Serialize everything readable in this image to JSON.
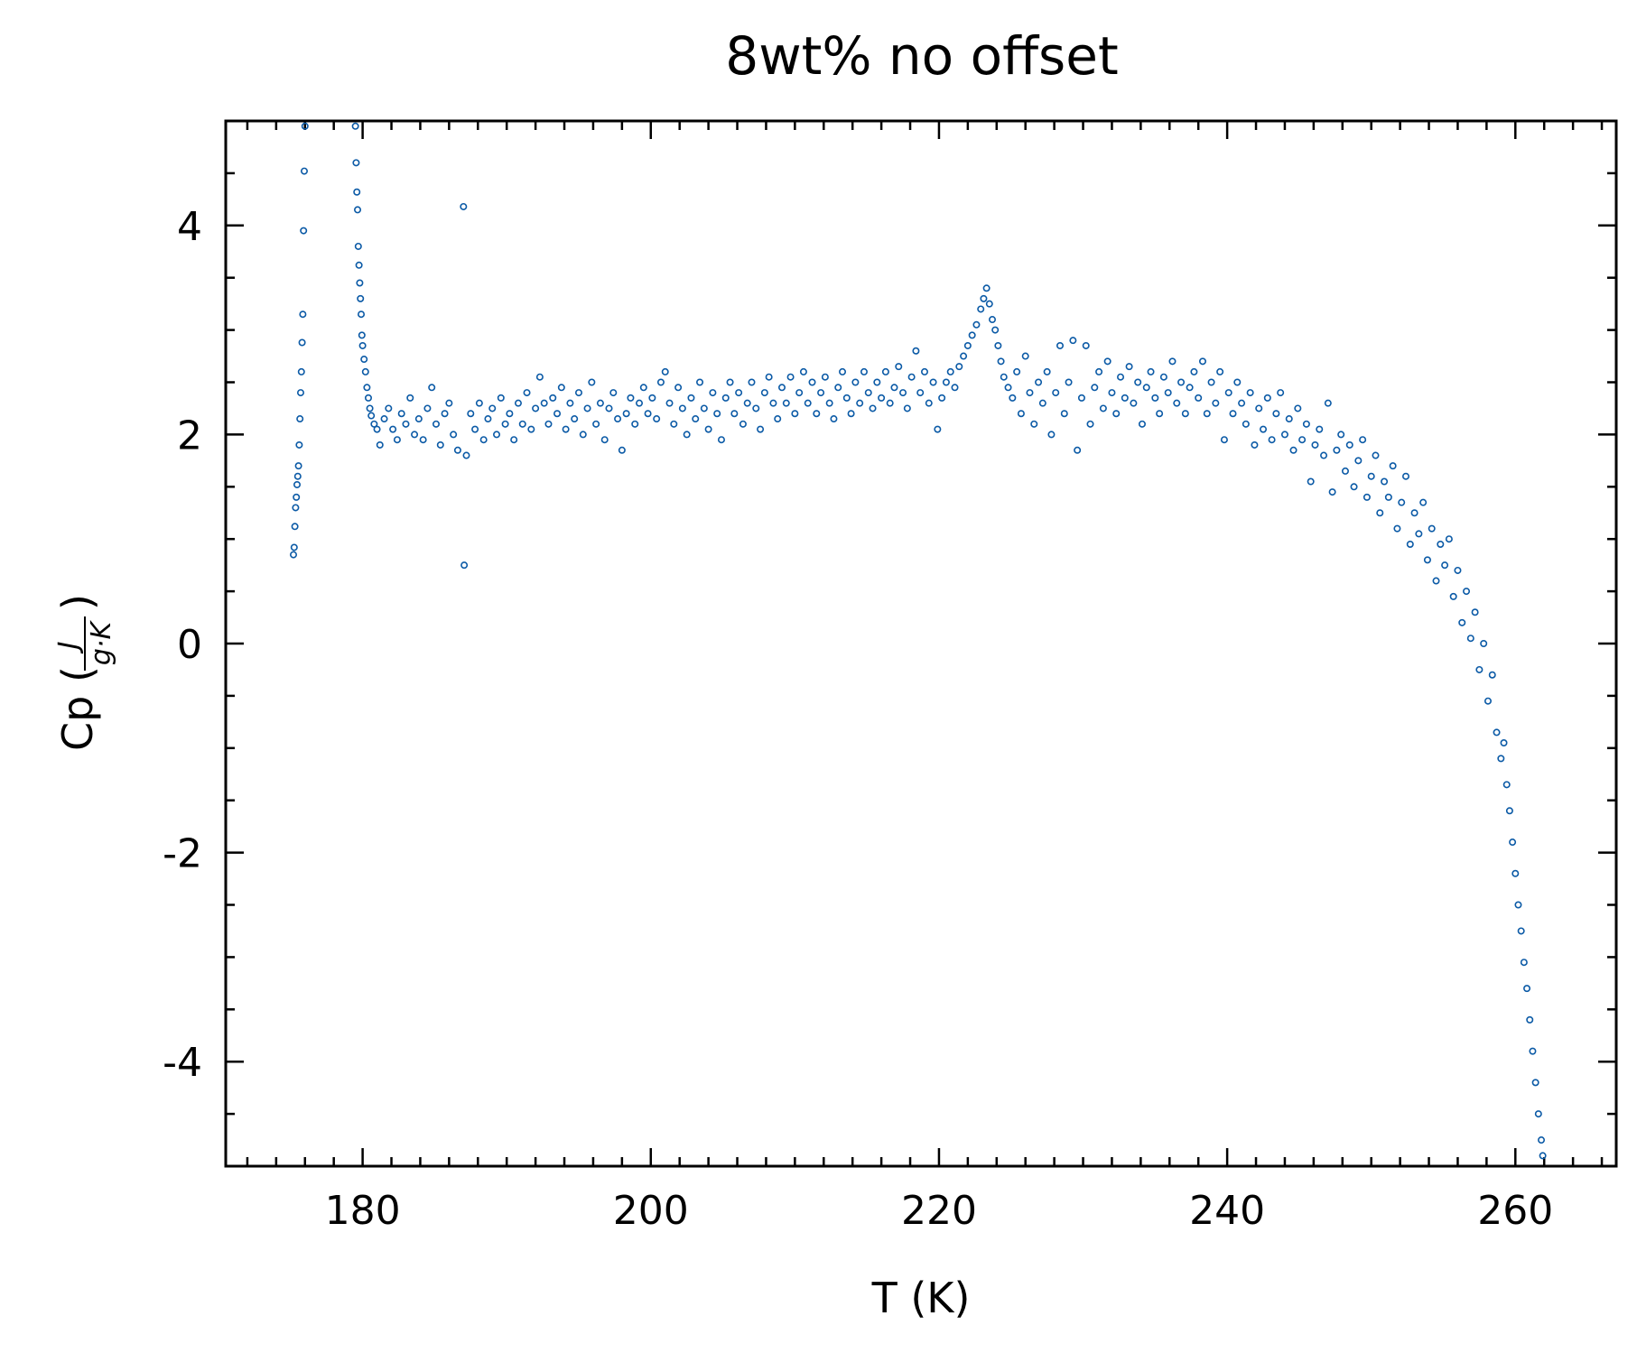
{
  "chart_data": {
    "type": "scatter",
    "title": "8wt% no offset",
    "xlabel": "T (K)",
    "ylabel": {
      "main": "Cp (",
      "numerator": "J",
      "denominator": "g·K",
      "close": ")"
    },
    "xlim": [
      170.5,
      267
    ],
    "ylim": [
      -5,
      5
    ],
    "x_ticks": [
      180,
      200,
      220,
      240,
      260
    ],
    "x_tick_labels": [
      "180",
      "200",
      "220",
      "240",
      "260"
    ],
    "x_minor_step": 2,
    "y_ticks": [
      -4,
      -2,
      0,
      2,
      4
    ],
    "y_tick_labels": [
      "-4",
      "-2",
      "0",
      "2",
      "4"
    ],
    "y_minor_step": 0.5,
    "tick_direction": "in",
    "grid": false,
    "legend": "none",
    "marker": "hollow circle",
    "color": "#0b5aa6",
    "series": [
      {
        "points": [
          [
            175.2,
            0.85
          ],
          [
            175.25,
            0.92
          ],
          [
            175.3,
            1.12
          ],
          [
            175.35,
            1.3
          ],
          [
            175.4,
            1.4
          ],
          [
            175.45,
            1.52
          ],
          [
            175.5,
            1.6
          ],
          [
            175.55,
            1.7
          ],
          [
            175.6,
            1.9
          ],
          [
            175.65,
            2.15
          ],
          [
            175.7,
            2.4
          ],
          [
            175.75,
            2.6
          ],
          [
            175.8,
            2.88
          ],
          [
            175.85,
            3.15
          ],
          [
            175.9,
            3.95
          ],
          [
            175.95,
            4.52
          ],
          [
            176.0,
            4.95
          ],
          [
            179.5,
            4.95
          ],
          [
            179.55,
            4.6
          ],
          [
            179.6,
            4.32
          ],
          [
            179.65,
            4.15
          ],
          [
            179.7,
            3.8
          ],
          [
            179.75,
            3.62
          ],
          [
            179.8,
            3.45
          ],
          [
            179.85,
            3.3
          ],
          [
            179.9,
            3.15
          ],
          [
            179.95,
            2.95
          ],
          [
            180.0,
            2.85
          ],
          [
            180.1,
            2.72
          ],
          [
            180.2,
            2.6
          ],
          [
            180.3,
            2.45
          ],
          [
            180.4,
            2.35
          ],
          [
            180.5,
            2.25
          ],
          [
            180.6,
            2.18
          ],
          [
            180.8,
            2.1
          ],
          [
            181.0,
            2.05
          ],
          [
            181.2,
            1.9
          ],
          [
            181.5,
            2.15
          ],
          [
            181.8,
            2.25
          ],
          [
            182.1,
            2.05
          ],
          [
            182.4,
            1.95
          ],
          [
            182.7,
            2.2
          ],
          [
            183.0,
            2.1
          ],
          [
            183.3,
            2.35
          ],
          [
            183.6,
            2.0
          ],
          [
            183.9,
            2.15
          ],
          [
            184.2,
            1.95
          ],
          [
            184.5,
            2.25
          ],
          [
            184.8,
            2.45
          ],
          [
            185.1,
            2.1
          ],
          [
            185.4,
            1.9
          ],
          [
            185.7,
            2.2
          ],
          [
            186.0,
            2.3
          ],
          [
            186.3,
            2.0
          ],
          [
            186.6,
            1.85
          ],
          [
            187.0,
            4.18
          ],
          [
            187.05,
            0.75
          ],
          [
            187.2,
            1.8
          ],
          [
            187.5,
            2.2
          ],
          [
            187.8,
            2.05
          ],
          [
            188.1,
            2.3
          ],
          [
            188.4,
            1.95
          ],
          [
            188.7,
            2.15
          ],
          [
            189.0,
            2.25
          ],
          [
            189.3,
            2.0
          ],
          [
            189.6,
            2.35
          ],
          [
            189.9,
            2.1
          ],
          [
            190.2,
            2.2
          ],
          [
            190.5,
            1.95
          ],
          [
            190.8,
            2.3
          ],
          [
            191.1,
            2.1
          ],
          [
            191.4,
            2.4
          ],
          [
            191.7,
            2.05
          ],
          [
            192.0,
            2.25
          ],
          [
            192.3,
            2.55
          ],
          [
            192.6,
            2.3
          ],
          [
            192.9,
            2.1
          ],
          [
            193.2,
            2.35
          ],
          [
            193.5,
            2.2
          ],
          [
            193.8,
            2.45
          ],
          [
            194.1,
            2.05
          ],
          [
            194.4,
            2.3
          ],
          [
            194.7,
            2.15
          ],
          [
            195.0,
            2.4
          ],
          [
            195.3,
            2.0
          ],
          [
            195.6,
            2.25
          ],
          [
            195.9,
            2.5
          ],
          [
            196.2,
            2.1
          ],
          [
            196.5,
            2.3
          ],
          [
            196.8,
            1.95
          ],
          [
            197.1,
            2.25
          ],
          [
            197.4,
            2.4
          ],
          [
            197.7,
            2.15
          ],
          [
            198.0,
            1.85
          ],
          [
            198.3,
            2.2
          ],
          [
            198.6,
            2.35
          ],
          [
            198.9,
            2.1
          ],
          [
            199.2,
            2.3
          ],
          [
            199.5,
            2.45
          ],
          [
            199.8,
            2.2
          ],
          [
            200.1,
            2.35
          ],
          [
            200.4,
            2.15
          ],
          [
            200.7,
            2.5
          ],
          [
            201.0,
            2.6
          ],
          [
            201.3,
            2.3
          ],
          [
            201.6,
            2.1
          ],
          [
            201.9,
            2.45
          ],
          [
            202.2,
            2.25
          ],
          [
            202.5,
            2.0
          ],
          [
            202.8,
            2.35
          ],
          [
            203.1,
            2.15
          ],
          [
            203.4,
            2.5
          ],
          [
            203.7,
            2.25
          ],
          [
            204.0,
            2.05
          ],
          [
            204.3,
            2.4
          ],
          [
            204.6,
            2.2
          ],
          [
            204.9,
            1.95
          ],
          [
            205.2,
            2.35
          ],
          [
            205.5,
            2.5
          ],
          [
            205.8,
            2.2
          ],
          [
            206.1,
            2.4
          ],
          [
            206.4,
            2.1
          ],
          [
            206.7,
            2.3
          ],
          [
            207.0,
            2.5
          ],
          [
            207.3,
            2.25
          ],
          [
            207.6,
            2.05
          ],
          [
            207.9,
            2.4
          ],
          [
            208.2,
            2.55
          ],
          [
            208.5,
            2.3
          ],
          [
            208.8,
            2.15
          ],
          [
            209.1,
            2.45
          ],
          [
            209.4,
            2.3
          ],
          [
            209.7,
            2.55
          ],
          [
            210.0,
            2.2
          ],
          [
            210.3,
            2.4
          ],
          [
            210.6,
            2.6
          ],
          [
            210.9,
            2.3
          ],
          [
            211.2,
            2.5
          ],
          [
            211.5,
            2.2
          ],
          [
            211.8,
            2.4
          ],
          [
            212.1,
            2.55
          ],
          [
            212.4,
            2.3
          ],
          [
            212.7,
            2.15
          ],
          [
            213.0,
            2.45
          ],
          [
            213.3,
            2.6
          ],
          [
            213.6,
            2.35
          ],
          [
            213.9,
            2.2
          ],
          [
            214.2,
            2.5
          ],
          [
            214.5,
            2.3
          ],
          [
            214.8,
            2.6
          ],
          [
            215.1,
            2.4
          ],
          [
            215.4,
            2.25
          ],
          [
            215.7,
            2.5
          ],
          [
            216.0,
            2.35
          ],
          [
            216.3,
            2.6
          ],
          [
            216.6,
            2.3
          ],
          [
            216.9,
            2.45
          ],
          [
            217.2,
            2.65
          ],
          [
            217.5,
            2.4
          ],
          [
            217.8,
            2.25
          ],
          [
            218.1,
            2.55
          ],
          [
            218.4,
            2.8
          ],
          [
            218.7,
            2.4
          ],
          [
            219.0,
            2.6
          ],
          [
            219.3,
            2.3
          ],
          [
            219.6,
            2.5
          ],
          [
            219.9,
            2.05
          ],
          [
            220.2,
            2.35
          ],
          [
            220.5,
            2.5
          ],
          [
            220.8,
            2.6
          ],
          [
            221.1,
            2.45
          ],
          [
            221.4,
            2.65
          ],
          [
            221.7,
            2.75
          ],
          [
            222.0,
            2.85
          ],
          [
            222.3,
            2.95
          ],
          [
            222.6,
            3.05
          ],
          [
            222.9,
            3.2
          ],
          [
            223.1,
            3.3
          ],
          [
            223.3,
            3.4
          ],
          [
            223.5,
            3.25
          ],
          [
            223.7,
            3.1
          ],
          [
            223.9,
            3.0
          ],
          [
            224.1,
            2.85
          ],
          [
            224.3,
            2.7
          ],
          [
            224.5,
            2.55
          ],
          [
            224.8,
            2.45
          ],
          [
            225.1,
            2.35
          ],
          [
            225.4,
            2.6
          ],
          [
            225.7,
            2.2
          ],
          [
            226.0,
            2.75
          ],
          [
            226.3,
            2.4
          ],
          [
            226.6,
            2.1
          ],
          [
            226.9,
            2.5
          ],
          [
            227.2,
            2.3
          ],
          [
            227.5,
            2.6
          ],
          [
            227.8,
            2.0
          ],
          [
            228.1,
            2.4
          ],
          [
            228.4,
            2.85
          ],
          [
            228.7,
            2.2
          ],
          [
            229.0,
            2.5
          ],
          [
            229.3,
            2.9
          ],
          [
            229.6,
            1.85
          ],
          [
            229.9,
            2.35
          ],
          [
            230.2,
            2.85
          ],
          [
            230.5,
            2.1
          ],
          [
            230.8,
            2.45
          ],
          [
            231.1,
            2.6
          ],
          [
            231.4,
            2.25
          ],
          [
            231.7,
            2.7
          ],
          [
            232.0,
            2.4
          ],
          [
            232.3,
            2.2
          ],
          [
            232.6,
            2.55
          ],
          [
            232.9,
            2.35
          ],
          [
            233.2,
            2.65
          ],
          [
            233.5,
            2.3
          ],
          [
            233.8,
            2.5
          ],
          [
            234.1,
            2.1
          ],
          [
            234.4,
            2.45
          ],
          [
            234.7,
            2.6
          ],
          [
            235.0,
            2.35
          ],
          [
            235.3,
            2.2
          ],
          [
            235.6,
            2.55
          ],
          [
            235.9,
            2.4
          ],
          [
            236.2,
            2.7
          ],
          [
            236.5,
            2.3
          ],
          [
            236.8,
            2.5
          ],
          [
            237.1,
            2.2
          ],
          [
            237.4,
            2.45
          ],
          [
            237.7,
            2.6
          ],
          [
            238.0,
            2.35
          ],
          [
            238.3,
            2.7
          ],
          [
            238.6,
            2.2
          ],
          [
            238.9,
            2.5
          ],
          [
            239.2,
            2.3
          ],
          [
            239.5,
            2.6
          ],
          [
            239.8,
            1.95
          ],
          [
            240.1,
            2.4
          ],
          [
            240.4,
            2.2
          ],
          [
            240.7,
            2.5
          ],
          [
            241.0,
            2.3
          ],
          [
            241.3,
            2.1
          ],
          [
            241.6,
            2.4
          ],
          [
            241.9,
            1.9
          ],
          [
            242.2,
            2.25
          ],
          [
            242.5,
            2.05
          ],
          [
            242.8,
            2.35
          ],
          [
            243.1,
            1.95
          ],
          [
            243.4,
            2.2
          ],
          [
            243.7,
            2.4
          ],
          [
            244.0,
            2.0
          ],
          [
            244.3,
            2.15
          ],
          [
            244.6,
            1.85
          ],
          [
            244.9,
            2.25
          ],
          [
            245.2,
            1.95
          ],
          [
            245.5,
            2.1
          ],
          [
            245.8,
            1.55
          ],
          [
            246.1,
            1.9
          ],
          [
            246.4,
            2.05
          ],
          [
            246.7,
            1.8
          ],
          [
            247.0,
            2.3
          ],
          [
            247.3,
            1.45
          ],
          [
            247.6,
            1.85
          ],
          [
            247.9,
            2.0
          ],
          [
            248.2,
            1.65
          ],
          [
            248.5,
            1.9
          ],
          [
            248.8,
            1.5
          ],
          [
            249.1,
            1.75
          ],
          [
            249.4,
            1.95
          ],
          [
            249.7,
            1.4
          ],
          [
            250.0,
            1.6
          ],
          [
            250.3,
            1.8
          ],
          [
            250.6,
            1.25
          ],
          [
            250.9,
            1.55
          ],
          [
            251.2,
            1.4
          ],
          [
            251.5,
            1.7
          ],
          [
            251.8,
            1.1
          ],
          [
            252.1,
            1.35
          ],
          [
            252.4,
            1.6
          ],
          [
            252.7,
            0.95
          ],
          [
            253.0,
            1.25
          ],
          [
            253.3,
            1.05
          ],
          [
            253.6,
            1.35
          ],
          [
            253.9,
            0.8
          ],
          [
            254.2,
            1.1
          ],
          [
            254.5,
            0.6
          ],
          [
            254.8,
            0.95
          ],
          [
            255.1,
            0.75
          ],
          [
            255.4,
            1.0
          ],
          [
            255.7,
            0.45
          ],
          [
            256.0,
            0.7
          ],
          [
            256.3,
            0.2
          ],
          [
            256.6,
            0.5
          ],
          [
            256.9,
            0.05
          ],
          [
            257.2,
            0.3
          ],
          [
            257.5,
            -0.25
          ],
          [
            257.8,
            0.0
          ],
          [
            258.1,
            -0.55
          ],
          [
            258.4,
            -0.3
          ],
          [
            258.7,
            -0.85
          ],
          [
            259.0,
            -1.1
          ],
          [
            259.2,
            -0.95
          ],
          [
            259.4,
            -1.35
          ],
          [
            259.6,
            -1.6
          ],
          [
            259.8,
            -1.9
          ],
          [
            260.0,
            -2.2
          ],
          [
            260.2,
            -2.5
          ],
          [
            260.4,
            -2.75
          ],
          [
            260.6,
            -3.05
          ],
          [
            260.8,
            -3.3
          ],
          [
            261.0,
            -3.6
          ],
          [
            261.2,
            -3.9
          ],
          [
            261.4,
            -4.2
          ],
          [
            261.6,
            -4.5
          ],
          [
            261.8,
            -4.75
          ],
          [
            261.9,
            -4.9
          ]
        ]
      }
    ]
  }
}
